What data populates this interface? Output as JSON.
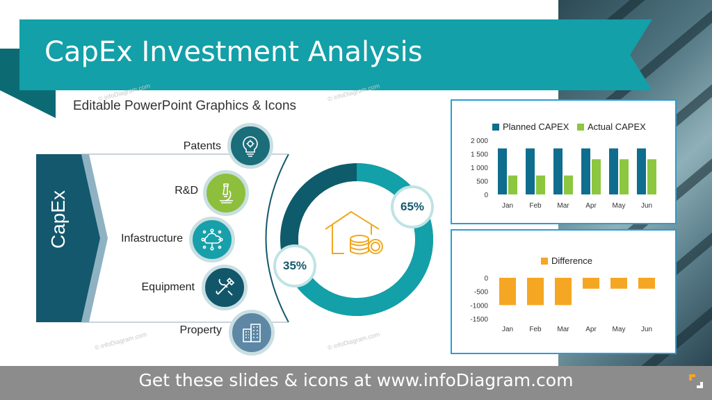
{
  "title": "CapEx Investment Analysis",
  "subtitle": "Editable PowerPoint Graphics & Icons",
  "capex_label": "CapEx",
  "categories": [
    {
      "label": "Patents",
      "icon": "lightbulb-gear-icon",
      "color": "#1b6d7a"
    },
    {
      "label": "R&D",
      "icon": "microscope-icon",
      "color": "#8dbf3c"
    },
    {
      "label": "Infastructure",
      "icon": "network-cloud-icon",
      "color": "#17a0a9"
    },
    {
      "label": "Equipment",
      "icon": "tools-icon",
      "color": "#12566a"
    },
    {
      "label": "Property",
      "icon": "buildings-icon",
      "color": "#5d87a4"
    }
  ],
  "donut": {
    "value_large": "65%",
    "value_small": "35%",
    "icon": "house-coins-icon"
  },
  "watermark": "© infoDiagram.com",
  "footer": "Get these slides & icons at www.infoDiagram.com",
  "colors": {
    "teal": "#13a0a8",
    "navy": "#13586d",
    "green": "#8dc63f",
    "blue": "#0f6d8e",
    "orange": "#f5a623"
  },
  "chart_data": [
    {
      "type": "bar",
      "categories": [
        "Jan",
        "Feb",
        "Mar",
        "Apr",
        "May",
        "Jun"
      ],
      "series": [
        {
          "name": "Planned CAPEX",
          "values": [
            1700,
            1700,
            1700,
            1700,
            1700,
            1700
          ],
          "color": "#0f6d8e"
        },
        {
          "name": "Actual CAPEX",
          "values": [
            700,
            700,
            700,
            1300,
            1300,
            1300
          ],
          "color": "#8dc63f"
        }
      ],
      "yticks": [
        "2 000",
        "1 500",
        "1 000",
        "500",
        "0"
      ],
      "ylim": [
        0,
        2000
      ],
      "legend": "top"
    },
    {
      "type": "bar",
      "categories": [
        "Jan",
        "Feb",
        "Mar",
        "Apr",
        "May",
        "Jun"
      ],
      "series": [
        {
          "name": "Difference",
          "values": [
            -1000,
            -1000,
            -1000,
            -400,
            -400,
            -400
          ],
          "color": "#f5a623"
        }
      ],
      "yticks": [
        "0",
        "-500",
        "-1000",
        "-1500"
      ],
      "ylim": [
        -1500,
        0
      ],
      "legend": "top"
    }
  ]
}
